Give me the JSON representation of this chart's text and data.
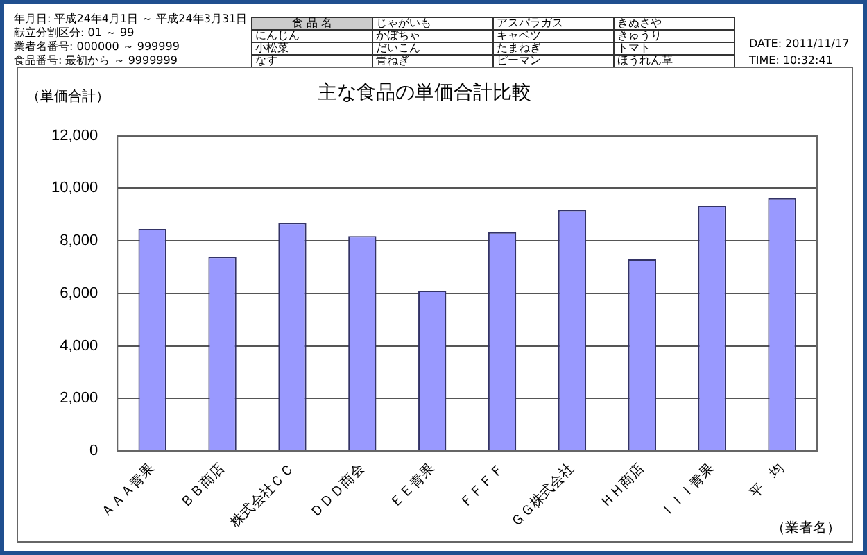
{
  "chart_data": {
    "type": "bar",
    "title": "主な食品の単価合計比較",
    "ylabel": "（単価合計）",
    "xlabel": "（業者名）",
    "categories": [
      "ＡＡＡ青果",
      "ＢＢ商店",
      "株式会社ＣＣ",
      "ＤＤＤ商会",
      "ＥＥ青果",
      "ＦＦＦＦ",
      "ＧＧ株式会社",
      "ＨＨ商店",
      "ＩＩＩ青果",
      "平　均"
    ],
    "values": [
      8450,
      7390,
      8680,
      8180,
      6100,
      8330,
      9180,
      7290,
      9320,
      9620
    ],
    "color": "#9999ff",
    "ylim": [
      0,
      12000
    ],
    "yticks": [
      {
        "value": 0,
        "label": "0"
      },
      {
        "value": 2000,
        "label": "2,000"
      },
      {
        "value": 4000,
        "label": "4,000"
      },
      {
        "value": 6000,
        "label": "6,000"
      },
      {
        "value": 8000,
        "label": "8,000"
      },
      {
        "value": 10000,
        "label": "10,000"
      },
      {
        "value": 12000,
        "label": "12,000"
      }
    ],
    "grid": "y",
    "legend": false,
    "annotations": [
      "年月日: 平成24年4月1日 ～ 平成24年3月31日",
      "献立分割区分: 01 ～ 99",
      "業者名番号: 000000 ～ 999999",
      "食品番号: 最初から ～ 9999999",
      "食 品 名",
      "じゃがいも",
      "アスパラガス",
      "きぬさや",
      "にんじん",
      "かぼちゃ",
      "キャベツ",
      "きゅうり",
      "小松菜",
      "だいこん",
      "たまねぎ",
      "トマト",
      "なす",
      "青ねぎ",
      "ピーマン",
      "ほうれん草",
      "DATE: 2011/11/17",
      "TIME: 10:32:41"
    ]
  }
}
